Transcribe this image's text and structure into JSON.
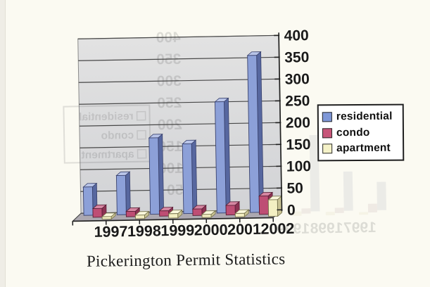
{
  "page": {
    "caption": "Pickerington Permit Statistics"
  },
  "chart_data": {
    "type": "bar",
    "variant": "3d-clustered-column",
    "title": "Pickerington Permit Statistics",
    "categories": [
      "1997",
      "1998",
      "1999",
      "2000",
      "2001",
      "2002"
    ],
    "series": [
      {
        "name": "residential",
        "values": [
          65,
          90,
          175,
          160,
          255,
          360
        ],
        "colors": {
          "front": "#8CA0D8",
          "side": "#57679F",
          "top": "#B8C4E8",
          "edge": "#39426E",
          "swatch": "#7E97D8"
        }
      },
      {
        "name": "condo",
        "values": [
          20,
          12,
          12,
          15,
          22,
          42
        ],
        "colors": {
          "front": "#BE4E74",
          "side": "#8C3152",
          "top": "#D687A2",
          "edge": "#5A1F36",
          "swatch": "#C75579"
        }
      },
      {
        "name": "apartment",
        "values": [
          6,
          8,
          10,
          7,
          8,
          38
        ],
        "colors": {
          "front": "#F3EFC2",
          "side": "#C9C394",
          "top": "#FAF8DC",
          "edge": "#77734C",
          "swatch": "#F5F2C8"
        }
      }
    ],
    "ylim": [
      0,
      400
    ],
    "yticks": [
      0,
      50,
      100,
      150,
      200,
      250,
      300,
      350,
      400
    ],
    "grid": true,
    "legend_position": "right",
    "xlabel": "",
    "ylabel": "",
    "wall_color_top": "#E2E2E2",
    "wall_color_bottom": "#D2D3D6",
    "floor_color": "#ACA8B0",
    "gridline_color": "#474747",
    "axis_text_color": "#1A1A1A",
    "page_background": "#FBFAF2"
  },
  "scan": {
    "ghost_note": "faint mirrored bleed-through of same chart (legend text, axis numbers, small bars) visible through the page",
    "ghost_opacity": 0.16
  }
}
